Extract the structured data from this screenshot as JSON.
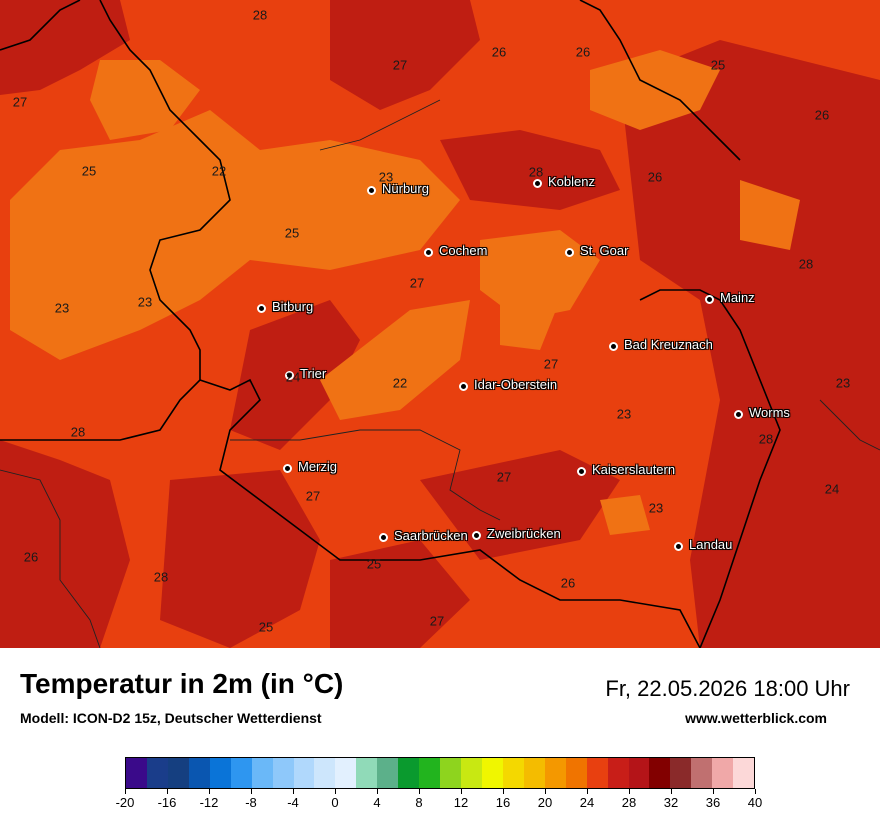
{
  "map": {
    "cities": [
      {
        "name": "Nürburg"
      },
      {
        "name": "Koblenz"
      },
      {
        "name": "Cochem"
      },
      {
        "name": "St. Goar"
      },
      {
        "name": "Bitburg"
      },
      {
        "name": "Mainz"
      },
      {
        "name": "Bad Kreuznach"
      },
      {
        "name": "Trier"
      },
      {
        "name": "Idar-Oberstein"
      },
      {
        "name": "Worms"
      },
      {
        "name": "Merzig"
      },
      {
        "name": "Kaiserslautern"
      },
      {
        "name": "Saarbrücken"
      },
      {
        "name": "Zweibrücken"
      },
      {
        "name": "Landau"
      }
    ],
    "temperature_labels": [
      "28",
      "27",
      "26",
      "26",
      "25",
      "27",
      "26",
      "25",
      "22",
      "23",
      "28",
      "26",
      "25",
      "27",
      "28",
      "23",
      "23",
      "22",
      "27",
      "23",
      "24",
      "23",
      "28",
      "28",
      "27",
      "27",
      "24",
      "23",
      "26",
      "25",
      "28",
      "26",
      "25",
      "27"
    ]
  },
  "info": {
    "title": "Temperatur in 2m (in °C)",
    "model": "Modell: ICON-D2 15z, Deutscher Wetterdienst",
    "datetime": "Fr, 22.05.2026 18:00 Uhr",
    "website": "www.wetterblick.com"
  },
  "legend": {
    "ticks": [
      "-20",
      "-16",
      "-12",
      "-8",
      "-4",
      "0",
      "4",
      "8",
      "12",
      "16",
      "20",
      "24",
      "28",
      "32",
      "36",
      "40"
    ],
    "colors": [
      "#3a0a8a",
      "#1a3d8a",
      "#153f80",
      "#0a56b0",
      "#0a74d8",
      "#2e96f0",
      "#6ab8f8",
      "#8ec8fa",
      "#b0d8fc",
      "#cde6fc",
      "#e2f0fe",
      "#90dab8",
      "#5cb08a",
      "#0a9a2e",
      "#22b41e",
      "#8ed41e",
      "#c8e812",
      "#f0f600",
      "#f4d800",
      "#f4bc00",
      "#f49800",
      "#f07400",
      "#e84010",
      "#c81e18",
      "#b41418",
      "#820000",
      "#8a2a2a",
      "#c07070",
      "#f0a8a8",
      "#fcd8d8"
    ]
  }
}
